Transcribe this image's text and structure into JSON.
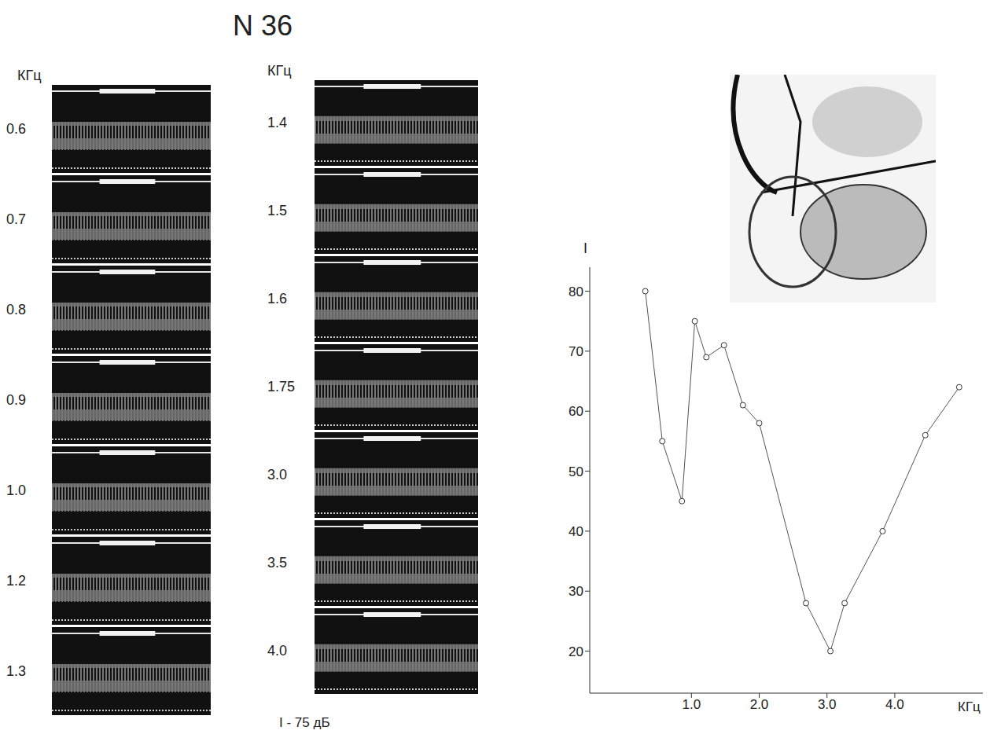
{
  "title": "N 36",
  "oscillograms": {
    "unit": "КГц",
    "columns": [
      [
        "0.6",
        "0.7",
        "0.8",
        "0.9",
        "1.0",
        "1.2",
        "1.3"
      ],
      [
        "1.4",
        "1.5",
        "1.6",
        "1.75",
        "3.0",
        "3.5",
        "4.0"
      ]
    ],
    "intensity": "I - 75 дБ"
  },
  "chart_data": {
    "type": "line",
    "x_label": "КГц",
    "y_label": "I",
    "x": [
      0.32,
      0.57,
      0.86,
      1.05,
      1.22,
      1.48,
      1.76,
      2.0,
      2.69,
      3.05,
      3.26,
      3.82,
      4.45,
      4.95
    ],
    "values": [
      80,
      55,
      45,
      75,
      69,
      71,
      61,
      58,
      28,
      20,
      28,
      40,
      56,
      64
    ],
    "color": "#555555",
    "marker": "circle",
    "xlim": [
      -0.5,
      5.3
    ],
    "ylim": [
      13,
      84
    ],
    "xticks": [
      {
        "value": 1,
        "label": "1.0"
      },
      {
        "value": 2,
        "label": "2.0"
      },
      {
        "value": 3,
        "label": "3.0"
      },
      {
        "value": 4,
        "label": "4.0"
      }
    ],
    "yticks": [
      20,
      30,
      40,
      50,
      60,
      70,
      80
    ]
  }
}
